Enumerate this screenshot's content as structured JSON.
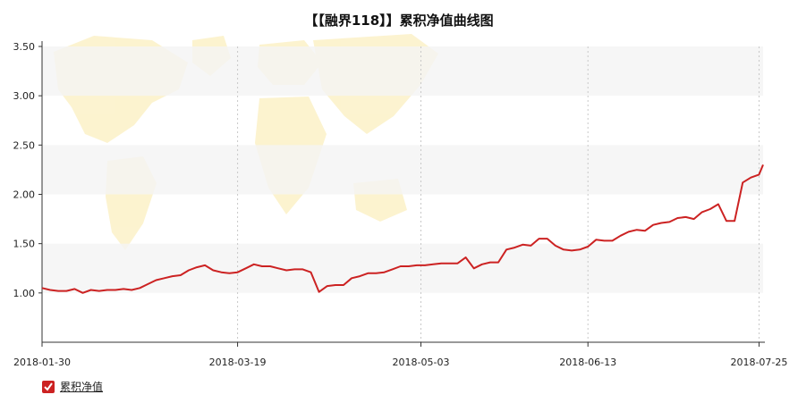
{
  "chart_data": {
    "type": "line",
    "title": "【【融界118】】累积净值曲线图",
    "xlabel": "",
    "ylabel": "",
    "ylim": [
      0.5,
      3.5
    ],
    "y_ticks": [
      "1.00",
      "1.50",
      "2.00",
      "2.50",
      "3.00",
      "3.50"
    ],
    "x_ticks": [
      "2018-01-30",
      "2018-03-19",
      "2018-05-03",
      "2018-06-13",
      "2018-07-25"
    ],
    "x_range": [
      "2018-01-30",
      "2018-07-26"
    ],
    "grid": "horizontal bands and vertical dotted lines",
    "legend_position": "bottom-left",
    "colors": {
      "line": "#cc2222",
      "band": "#f4f4f4",
      "background_map": "#fbefc0"
    },
    "series": [
      {
        "name": "累积净值",
        "points": [
          [
            "2018-01-30",
            1.05
          ],
          [
            "2018-02-01",
            1.03
          ],
          [
            "2018-02-03",
            1.02
          ],
          [
            "2018-02-05",
            1.02
          ],
          [
            "2018-02-07",
            1.04
          ],
          [
            "2018-02-09",
            1.0
          ],
          [
            "2018-02-11",
            1.03
          ],
          [
            "2018-02-13",
            1.02
          ],
          [
            "2018-02-15",
            1.03
          ],
          [
            "2018-02-17",
            1.03
          ],
          [
            "2018-02-19",
            1.04
          ],
          [
            "2018-02-21",
            1.03
          ],
          [
            "2018-02-23",
            1.05
          ],
          [
            "2018-02-25",
            1.09
          ],
          [
            "2018-02-27",
            1.13
          ],
          [
            "2018-03-01",
            1.15
          ],
          [
            "2018-03-03",
            1.17
          ],
          [
            "2018-03-05",
            1.18
          ],
          [
            "2018-03-07",
            1.23
          ],
          [
            "2018-03-09",
            1.26
          ],
          [
            "2018-03-11",
            1.28
          ],
          [
            "2018-03-13",
            1.23
          ],
          [
            "2018-03-15",
            1.21
          ],
          [
            "2018-03-17",
            1.2
          ],
          [
            "2018-03-19",
            1.21
          ],
          [
            "2018-03-21",
            1.25
          ],
          [
            "2018-03-23",
            1.29
          ],
          [
            "2018-03-25",
            1.27
          ],
          [
            "2018-03-27",
            1.27
          ],
          [
            "2018-03-29",
            1.25
          ],
          [
            "2018-03-31",
            1.23
          ],
          [
            "2018-04-02",
            1.24
          ],
          [
            "2018-04-04",
            1.24
          ],
          [
            "2018-04-06",
            1.21
          ],
          [
            "2018-04-08",
            1.01
          ],
          [
            "2018-04-10",
            1.07
          ],
          [
            "2018-04-12",
            1.08
          ],
          [
            "2018-04-14",
            1.08
          ],
          [
            "2018-04-16",
            1.15
          ],
          [
            "2018-04-18",
            1.17
          ],
          [
            "2018-04-20",
            1.2
          ],
          [
            "2018-04-22",
            1.2
          ],
          [
            "2018-04-24",
            1.21
          ],
          [
            "2018-04-26",
            1.24
          ],
          [
            "2018-04-28",
            1.27
          ],
          [
            "2018-04-30",
            1.27
          ],
          [
            "2018-05-02",
            1.28
          ],
          [
            "2018-05-04",
            1.28
          ],
          [
            "2018-05-06",
            1.29
          ],
          [
            "2018-05-08",
            1.3
          ],
          [
            "2018-05-10",
            1.3
          ],
          [
            "2018-05-12",
            1.3
          ],
          [
            "2018-05-14",
            1.36
          ],
          [
            "2018-05-16",
            1.25
          ],
          [
            "2018-05-18",
            1.29
          ],
          [
            "2018-05-20",
            1.31
          ],
          [
            "2018-05-22",
            1.31
          ],
          [
            "2018-05-24",
            1.44
          ],
          [
            "2018-05-26",
            1.46
          ],
          [
            "2018-05-28",
            1.49
          ],
          [
            "2018-05-30",
            1.48
          ],
          [
            "2018-06-01",
            1.55
          ],
          [
            "2018-06-03",
            1.55
          ],
          [
            "2018-06-05",
            1.48
          ],
          [
            "2018-06-07",
            1.44
          ],
          [
            "2018-06-09",
            1.43
          ],
          [
            "2018-06-11",
            1.44
          ],
          [
            "2018-06-13",
            1.47
          ],
          [
            "2018-06-15",
            1.54
          ],
          [
            "2018-06-17",
            1.53
          ],
          [
            "2018-06-19",
            1.53
          ],
          [
            "2018-06-21",
            1.58
          ],
          [
            "2018-06-23",
            1.62
          ],
          [
            "2018-06-25",
            1.64
          ],
          [
            "2018-06-27",
            1.63
          ],
          [
            "2018-06-29",
            1.69
          ],
          [
            "2018-07-01",
            1.71
          ],
          [
            "2018-07-03",
            1.72
          ],
          [
            "2018-07-05",
            1.76
          ],
          [
            "2018-07-07",
            1.77
          ],
          [
            "2018-07-09",
            1.75
          ],
          [
            "2018-07-11",
            1.82
          ],
          [
            "2018-07-13",
            1.85
          ],
          [
            "2018-07-15",
            1.9
          ],
          [
            "2018-07-17",
            1.73
          ],
          [
            "2018-07-19",
            1.73
          ],
          [
            "2018-07-21",
            2.12
          ],
          [
            "2018-07-23",
            2.17
          ],
          [
            "2018-07-25",
            2.2
          ],
          [
            "2018-07-26",
            2.3
          ]
        ]
      }
    ]
  },
  "legend": {
    "label": "累积净值"
  }
}
